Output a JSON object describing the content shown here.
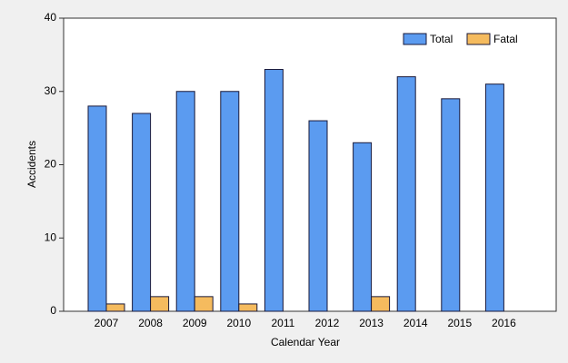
{
  "chart_data": {
    "type": "bar",
    "x_label": "Calendar Year",
    "y_label": "Accidents",
    "categories": [
      "2007",
      "2008",
      "2009",
      "2010",
      "2011",
      "2012",
      "2013",
      "2014",
      "2015",
      "2016"
    ],
    "series": [
      {
        "name": "Total",
        "color": "#5b9bf0",
        "values": [
          28,
          27,
          30,
          30,
          33,
          26,
          23,
          32,
          29,
          31
        ]
      },
      {
        "name": "Fatal",
        "color": "#f5bb5e",
        "values": [
          1,
          2,
          2,
          1,
          0,
          0,
          2,
          0,
          0,
          0
        ]
      }
    ],
    "ylim": [
      0,
      40
    ],
    "yticks": [
      0,
      10,
      20,
      30,
      40
    ],
    "legend": "top-right"
  }
}
